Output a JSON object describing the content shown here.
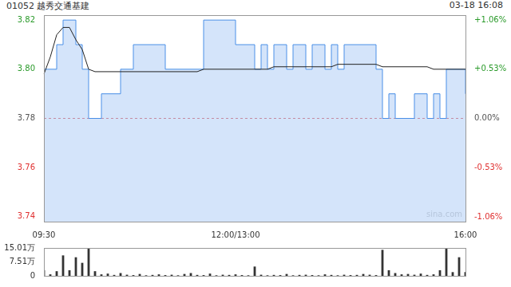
{
  "chart_data": [
    {
      "type": "line",
      "title": "01052 越秀交通基建",
      "subtitle": "03-18 16:08",
      "watermark": "sina.com",
      "categories": [
        "09:30",
        null,
        null,
        null,
        null,
        null,
        null,
        null,
        null,
        null,
        null,
        null,
        null,
        null,
        null,
        null,
        null,
        null,
        null,
        null,
        null,
        null,
        null,
        null,
        null,
        null,
        null,
        null,
        null,
        null,
        "12:00/13:00",
        null,
        null,
        null,
        null,
        null,
        null,
        null,
        null,
        null,
        null,
        null,
        null,
        null,
        null,
        null,
        null,
        null,
        null,
        null,
        null,
        null,
        null,
        null,
        null,
        null,
        null,
        null,
        null,
        null,
        null,
        null,
        null,
        null,
        null,
        null,
        "16:00"
      ],
      "series": [
        {
          "type": "area",
          "color": "#4a8fe7",
          "line_style": "step",
          "values": [
            3.8,
            3.8,
            3.81,
            3.82,
            3.82,
            3.81,
            3.8,
            3.78,
            3.78,
            3.79,
            3.79,
            3.79,
            3.8,
            3.8,
            3.81,
            3.81,
            3.81,
            3.81,
            3.81,
            3.8,
            3.8,
            3.8,
            3.8,
            3.8,
            3.8,
            3.82,
            3.82,
            3.82,
            3.82,
            3.82,
            3.81,
            3.81,
            3.81,
            3.8,
            3.81,
            3.8,
            3.81,
            3.81,
            3.8,
            3.81,
            3.81,
            3.8,
            3.81,
            3.81,
            3.8,
            3.81,
            3.8,
            3.81,
            3.81,
            3.81,
            3.81,
            3.81,
            3.8,
            3.78,
            3.79,
            3.78,
            3.78,
            3.78,
            3.79,
            3.79,
            3.78,
            3.79,
            3.78,
            3.8,
            3.8,
            3.8,
            3.79
          ]
        },
        {
          "type": "line",
          "color": "#222222",
          "line_style": "solid",
          "values": [
            3.798,
            3.805,
            3.814,
            3.817,
            3.817,
            3.812,
            3.808,
            3.8,
            3.799,
            3.799,
            3.799,
            3.799,
            3.799,
            3.799,
            3.799,
            3.799,
            3.799,
            3.799,
            3.799,
            3.799,
            3.799,
            3.799,
            3.799,
            3.799,
            3.799,
            3.8,
            3.8,
            3.8,
            3.8,
            3.8,
            3.8,
            3.8,
            3.8,
            3.8,
            3.8,
            3.8,
            3.801,
            3.801,
            3.801,
            3.801,
            3.801,
            3.801,
            3.801,
            3.801,
            3.801,
            3.801,
            3.802,
            3.802,
            3.802,
            3.802,
            3.802,
            3.802,
            3.802,
            3.801,
            3.801,
            3.801,
            3.801,
            3.801,
            3.801,
            3.801,
            3.801,
            3.8,
            3.8,
            3.8,
            3.8,
            3.8,
            3.8
          ]
        }
      ],
      "prev_close": 3.78,
      "ylim": [
        3.738,
        3.822
      ],
      "yticks": [
        3.74,
        3.76,
        3.78,
        {
          "value": 3.8,
          "label": "3.80"
        },
        3.82
      ],
      "y2lim": [
        -1.111,
        1.111
      ],
      "y2ticks": [
        {
          "value": -1.06,
          "label": "-1.06%"
        },
        {
          "value": -0.53,
          "label": "-0.53%"
        },
        {
          "value": 0,
          "label": "0.00%"
        },
        {
          "value": 0.53,
          "label": "+0.53%"
        },
        {
          "value": 1.06,
          "label": "+1.06%"
        }
      ],
      "grid": false
    },
    {
      "type": "bar",
      "categories": [
        "09:30",
        null,
        null,
        null,
        null,
        null,
        null,
        null,
        null,
        null,
        null,
        null,
        null,
        null,
        null,
        null,
        null,
        null,
        null,
        null,
        null,
        null,
        null,
        null,
        null,
        null,
        null,
        null,
        null,
        null,
        "12:00/13:00",
        null,
        null,
        null,
        null,
        null,
        null,
        null,
        null,
        null,
        null,
        null,
        null,
        null,
        null,
        null,
        null,
        null,
        null,
        null,
        null,
        null,
        null,
        null,
        null,
        null,
        null,
        null,
        null,
        null,
        null,
        null,
        null,
        null,
        null,
        null,
        "16:00"
      ],
      "values": [
        30000,
        8000,
        25000,
        110000,
        30000,
        100000,
        70000,
        150000,
        25000,
        8000,
        12000,
        5000,
        15000,
        6000,
        4000,
        10000,
        3000,
        5000,
        8000,
        4000,
        6000,
        3000,
        10000,
        15000,
        5000,
        4000,
        12000,
        3000,
        6000,
        5000,
        8000,
        4000,
        3000,
        50000,
        6000,
        3000,
        5000,
        4000,
        10000,
        3000,
        5000,
        6000,
        4000,
        3000,
        8000,
        5000,
        3000,
        6000,
        4000,
        5000,
        10000,
        6000,
        4000,
        140000,
        30000,
        15000,
        8000,
        10000,
        6000,
        12000,
        5000,
        8000,
        30000,
        150000,
        20000,
        100000,
        20000
      ],
      "color": "#333333",
      "ylim": [
        0,
        150100
      ],
      "yticks": [
        0,
        {
          "value": 75100,
          "label": "7.51万"
        },
        {
          "value": 150100,
          "label": "15.01万"
        }
      ],
      "tick_labels": "y",
      "grid": false
    }
  ]
}
